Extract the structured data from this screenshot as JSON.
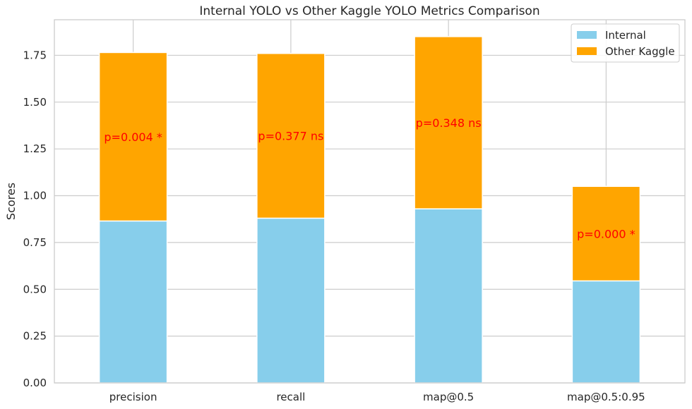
{
  "chart_data": {
    "type": "bar",
    "stacked": true,
    "title": "Internal YOLO vs Other Kaggle YOLO Metrics Comparison",
    "xlabel": "",
    "ylabel": "Scores",
    "categories": [
      "precision",
      "recall",
      "map@0.5",
      "map@0.5:0.95"
    ],
    "series": [
      {
        "name": "Internal",
        "color": "#87CEEB",
        "values": [
          0.865,
          0.88,
          0.93,
          0.545
        ]
      },
      {
        "name": "Other Kaggle",
        "color": "#FFA500",
        "values": [
          0.9,
          0.88,
          0.92,
          0.505
        ]
      }
    ],
    "annotations": [
      "p=0.004 *",
      "p=0.377 ns",
      "p=0.348 ns",
      "p=0.000 *"
    ],
    "annotation_color": "#FF0000",
    "ylim": [
      0,
      1.94
    ],
    "yticks": [
      0.0,
      0.25,
      0.5,
      0.75,
      1.0,
      1.25,
      1.5,
      1.75
    ],
    "ytick_labels": [
      "0.00",
      "0.25",
      "0.50",
      "0.75",
      "1.00",
      "1.25",
      "1.50",
      "1.75"
    ],
    "grid": true,
    "legend_position": "top-right"
  }
}
